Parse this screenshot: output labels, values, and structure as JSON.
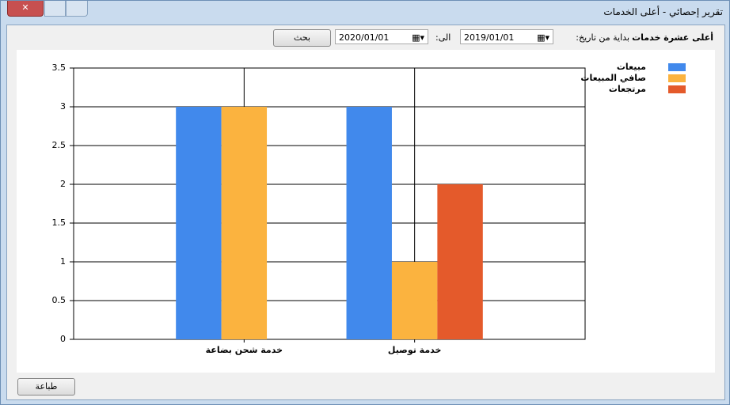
{
  "window": {
    "title": "تقرير إحصائي - أعلى الخدمات"
  },
  "toolbar": {
    "heading": "أعلى عشرة خدمات",
    "from_label": "بداية من تاريخ:",
    "from_date": "2019/01/01",
    "to_label": "الى:",
    "to_date": "2020/01/01",
    "search_button": "بحث"
  },
  "print_button": "طباعة",
  "chart_data": {
    "type": "bar",
    "categories": [
      "خدمة شحن بضاعة",
      "خدمة توصيل"
    ],
    "series": [
      {
        "name": "مبيعات",
        "color": "#4189ec",
        "values": [
          3,
          3
        ]
      },
      {
        "name": "صافي المبيعات",
        "color": "#fbb33f",
        "values": [
          3,
          1
        ]
      },
      {
        "name": "مرتجعات",
        "color": "#e45a2b",
        "values": [
          0,
          2
        ]
      }
    ],
    "ylim": [
      0,
      3.5
    ],
    "yticks": [
      0,
      0.5,
      1,
      1.5,
      2,
      2.5,
      3,
      3.5
    ],
    "grid": true,
    "legend": "top-right"
  }
}
